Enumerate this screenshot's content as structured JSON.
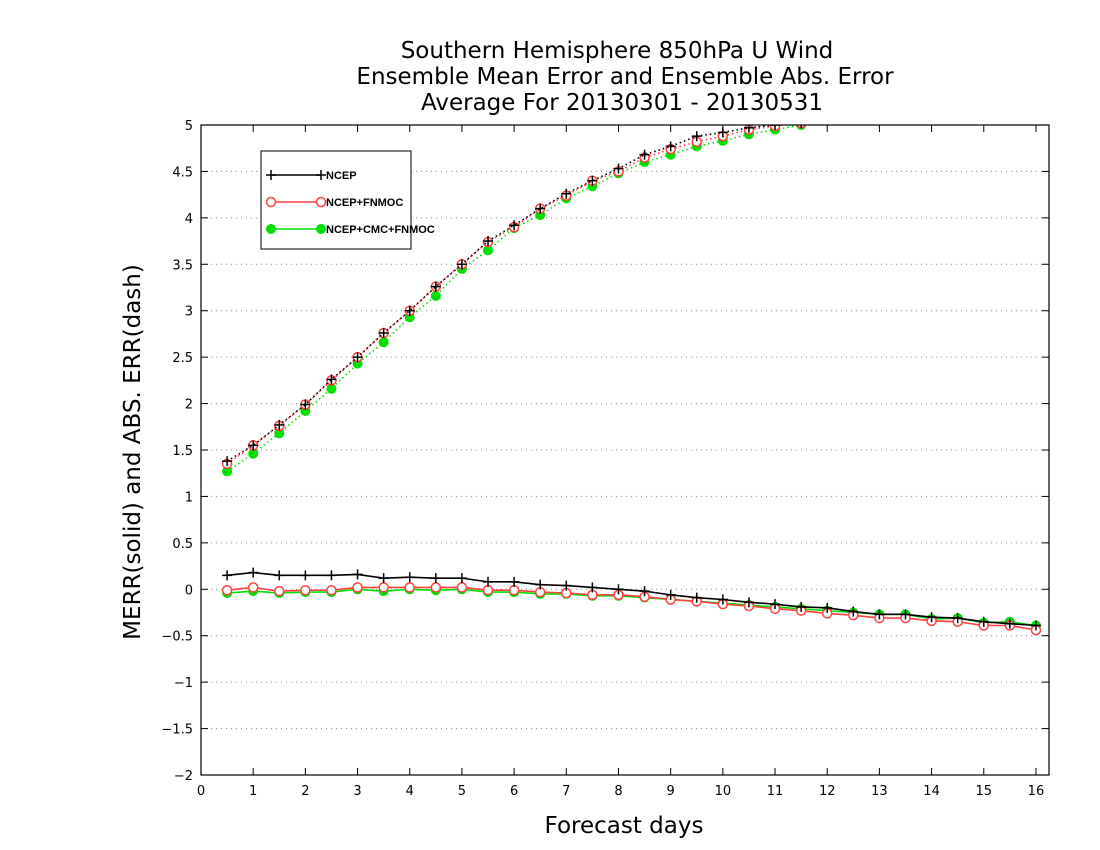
{
  "chart_data": {
    "type": "line",
    "title": [
      "Southern Hemisphere 850hPa U Wind",
      "Ensemble Mean Error and Ensemble Abs. Error",
      "Average For 20130301 - 20130531"
    ],
    "xlabel": "Forecast days",
    "ylabel": "MERR(solid) and ABS. ERR(dash)",
    "xlim": [
      0,
      16.25
    ],
    "ylim": [
      -2,
      5
    ],
    "xticks": [
      0,
      1,
      2,
      3,
      4,
      5,
      6,
      7,
      8,
      9,
      10,
      11,
      12,
      13,
      14,
      15,
      16
    ],
    "xtick_labels": [
      "0",
      "1",
      "2",
      "3",
      "4",
      "5",
      "6",
      "7",
      "8",
      "9",
      "10",
      "11",
      "12",
      "13",
      "14",
      "15",
      "16"
    ],
    "yticks": [
      -2,
      -1.5,
      -1,
      -0.5,
      0,
      0.5,
      1,
      1.5,
      2,
      2.5,
      3,
      3.5,
      4,
      4.5,
      5
    ],
    "ytick_labels": [
      "−2",
      "−1.5",
      "−1",
      "−0.5",
      "0",
      "0.5",
      "1",
      "1.5",
      "2",
      "2.5",
      "3",
      "3.5",
      "4",
      "4.5",
      "5"
    ],
    "grid": "horizontal dotted",
    "legend_position": "top-left",
    "x": [
      0.5,
      1,
      1.5,
      2,
      2.5,
      3,
      3.5,
      4,
      4.5,
      5,
      5.5,
      6,
      6.5,
      7,
      7.5,
      8,
      8.5,
      9,
      9.5,
      10,
      10.5,
      11,
      11.5,
      12,
      12.5,
      13,
      13.5,
      14,
      14.5,
      15,
      15.5,
      16
    ],
    "series": [
      {
        "name": "NCEP",
        "color": "#000000",
        "marker": "plus",
        "mean_error": [
          0.15,
          0.18,
          0.15,
          0.15,
          0.15,
          0.16,
          0.12,
          0.13,
          0.12,
          0.12,
          0.08,
          0.08,
          0.05,
          0.04,
          0.02,
          0.0,
          -0.02,
          -0.06,
          -0.09,
          -0.11,
          -0.14,
          -0.16,
          -0.19,
          -0.2,
          -0.24,
          -0.27,
          -0.27,
          -0.3,
          -0.31,
          -0.35,
          -0.37,
          -0.39
        ],
        "abs_error": [
          1.38,
          1.55,
          1.77,
          1.99,
          2.26,
          2.5,
          2.76,
          3.0,
          3.26,
          3.5,
          3.75,
          3.92,
          4.1,
          4.26,
          4.4,
          4.53,
          4.68,
          4.77,
          4.88,
          4.92,
          4.97,
          5.0,
          5.02,
          null,
          null,
          null,
          null,
          null,
          null,
          null,
          null,
          null
        ]
      },
      {
        "name": "NCEP+FNMOC",
        "color": "#ff4040",
        "marker": "open-circle",
        "mean_error": [
          -0.01,
          0.02,
          -0.02,
          -0.01,
          -0.01,
          0.02,
          0.02,
          0.02,
          0.02,
          0.02,
          -0.01,
          -0.01,
          -0.03,
          -0.04,
          -0.06,
          -0.06,
          -0.08,
          -0.11,
          -0.13,
          -0.16,
          -0.18,
          -0.21,
          -0.23,
          -0.26,
          -0.28,
          -0.31,
          -0.31,
          -0.34,
          -0.35,
          -0.39,
          -0.39,
          -0.44
        ],
        "abs_error": [
          1.35,
          1.55,
          1.76,
          1.99,
          2.25,
          2.5,
          2.76,
          3.0,
          3.26,
          3.5,
          3.74,
          3.9,
          4.1,
          4.24,
          4.4,
          4.5,
          4.65,
          4.74,
          4.82,
          4.88,
          4.95,
          4.99,
          5.02,
          null,
          null,
          null,
          null,
          null,
          null,
          null,
          null,
          null
        ]
      },
      {
        "name": "NCEP+CMC+FNMOC",
        "color": "#00e000",
        "marker": "filled-circle",
        "mean_error": [
          -0.04,
          -0.02,
          -0.04,
          -0.03,
          -0.03,
          0.0,
          -0.02,
          0.0,
          -0.01,
          0.0,
          -0.03,
          -0.03,
          -0.05,
          -0.05,
          -0.07,
          -0.07,
          -0.09,
          -0.11,
          -0.13,
          -0.15,
          -0.17,
          -0.19,
          -0.21,
          -0.23,
          -0.25,
          -0.27,
          -0.27,
          -0.32,
          -0.31,
          -0.36,
          -0.35,
          -0.39
        ],
        "abs_error": [
          1.27,
          1.46,
          1.68,
          1.92,
          2.16,
          2.43,
          2.66,
          2.93,
          3.16,
          3.45,
          3.65,
          3.89,
          4.03,
          4.21,
          4.34,
          4.48,
          4.6,
          4.68,
          4.77,
          4.83,
          4.9,
          4.95,
          5.0,
          null,
          null,
          null,
          null,
          null,
          null,
          null,
          null,
          null
        ]
      }
    ]
  }
}
